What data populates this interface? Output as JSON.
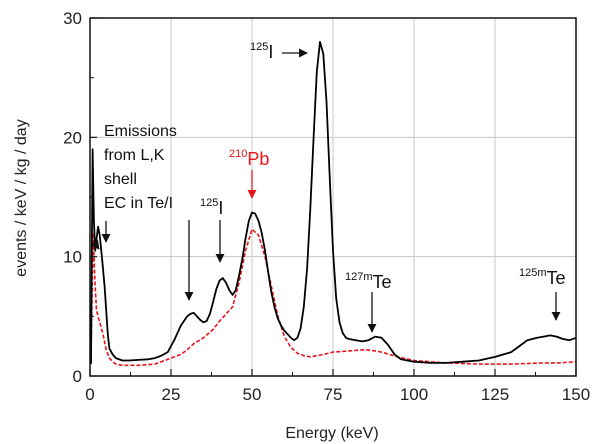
{
  "chart_data": {
    "type": "line",
    "title": "",
    "xlabel": "Energy (keV)",
    "ylabel": "events / keV / kg / day",
    "xlim": [
      0,
      150
    ],
    "ylim": [
      0,
      30
    ],
    "xticks": [
      0,
      25,
      50,
      75,
      100,
      125,
      150
    ],
    "yticks": [
      0,
      10,
      20,
      30
    ],
    "grid": true,
    "legend": "none",
    "colors": {
      "black_series": "#000000",
      "red_series": "#e8141b",
      "grid": "#c8c8c8",
      "annotation": "#111111"
    },
    "series": [
      {
        "color": "#000000",
        "style": "solid",
        "x": [
          0.3,
          0.8,
          1.2,
          1.6,
          2.0,
          2.5,
          3.0,
          3.5,
          4.0,
          4.5,
          5.0,
          5.5,
          6.0,
          7,
          8,
          10,
          12,
          15,
          18,
          20,
          22,
          24,
          26,
          28,
          30,
          31,
          32,
          33,
          34,
          35,
          36,
          37,
          38,
          39,
          40,
          41,
          42,
          43,
          44,
          45,
          46,
          47,
          48,
          49,
          50,
          51,
          52,
          53,
          54,
          55,
          56,
          57,
          58,
          59,
          60,
          61,
          62,
          63,
          64,
          65,
          66,
          67,
          68,
          69,
          70,
          71,
          72,
          73,
          74,
          75,
          76,
          77,
          78,
          79,
          80,
          82,
          84,
          86,
          88,
          90,
          92,
          94,
          96,
          98,
          100,
          105,
          110,
          115,
          120,
          125,
          130,
          133,
          135,
          138,
          140,
          142,
          144,
          146,
          148,
          150
        ],
        "y": [
          1.0,
          19.0,
          13.0,
          10.5,
          11.5,
          12.5,
          11.8,
          10.5,
          9.0,
          7.5,
          5.5,
          3.5,
          2.3,
          1.8,
          1.5,
          1.3,
          1.3,
          1.35,
          1.4,
          1.5,
          1.7,
          2.0,
          3.0,
          4.2,
          5.0,
          5.2,
          5.3,
          5.0,
          4.7,
          4.5,
          4.6,
          5.2,
          6.2,
          7.3,
          8.0,
          8.2,
          7.8,
          7.2,
          6.8,
          7.2,
          8.4,
          9.8,
          11.5,
          13.0,
          13.7,
          13.6,
          13.0,
          12.0,
          10.5,
          8.7,
          7.0,
          5.7,
          4.8,
          4.2,
          3.8,
          3.5,
          3.2,
          3.0,
          3.2,
          4.0,
          5.8,
          9.0,
          14.0,
          20.0,
          25.5,
          28.0,
          27.0,
          23.0,
          16.5,
          10.5,
          6.5,
          4.5,
          3.6,
          3.2,
          3.1,
          3.0,
          2.9,
          3.0,
          3.3,
          3.2,
          2.6,
          1.8,
          1.4,
          1.3,
          1.2,
          1.1,
          1.1,
          1.2,
          1.3,
          1.6,
          2.0,
          2.6,
          3.0,
          3.2,
          3.3,
          3.4,
          3.3,
          3.1,
          3.0,
          3.2
        ]
      },
      {
        "color": "#e8141b",
        "style": "dashed",
        "x": [
          0.3,
          1.0,
          1.5,
          2.0,
          3.0,
          4.0,
          5.0,
          6.0,
          7,
          8,
          10,
          15,
          20,
          22,
          25,
          28,
          30,
          32,
          35,
          38,
          40,
          42,
          44,
          46,
          48,
          50,
          52,
          54,
          56,
          58,
          60,
          62,
          64,
          66,
          68,
          70,
          72,
          75,
          80,
          85,
          88,
          90,
          95,
          100,
          110,
          120,
          130,
          140,
          145,
          150
        ],
        "y": [
          2.0,
          12.0,
          8.0,
          5.5,
          4.5,
          3.5,
          2.2,
          1.5,
          1.2,
          1.0,
          0.9,
          0.9,
          1.0,
          1.2,
          1.5,
          1.8,
          2.2,
          2.7,
          3.2,
          3.9,
          4.6,
          5.2,
          5.8,
          7.8,
          10.5,
          12.3,
          11.8,
          10.0,
          7.5,
          5.0,
          3.3,
          2.4,
          1.9,
          1.7,
          1.6,
          1.7,
          1.8,
          2.0,
          2.1,
          2.2,
          2.1,
          2.0,
          1.6,
          1.3,
          1.1,
          1.0,
          1.0,
          1.1,
          1.1,
          1.2
        ]
      }
    ],
    "annotations": {
      "emission_lines": [
        "Emissions",
        "from L,K",
        "shell",
        "EC in Te/I"
      ],
      "i125_top": {
        "mass": "125",
        "element": "I"
      },
      "i125_mid": {
        "mass": "125",
        "element": "I"
      },
      "pb210": {
        "mass": "210",
        "element": "Pb"
      },
      "te127m": {
        "mass": "127m",
        "element": "Te"
      },
      "te125m": {
        "mass": "125m",
        "element": "Te"
      }
    }
  }
}
